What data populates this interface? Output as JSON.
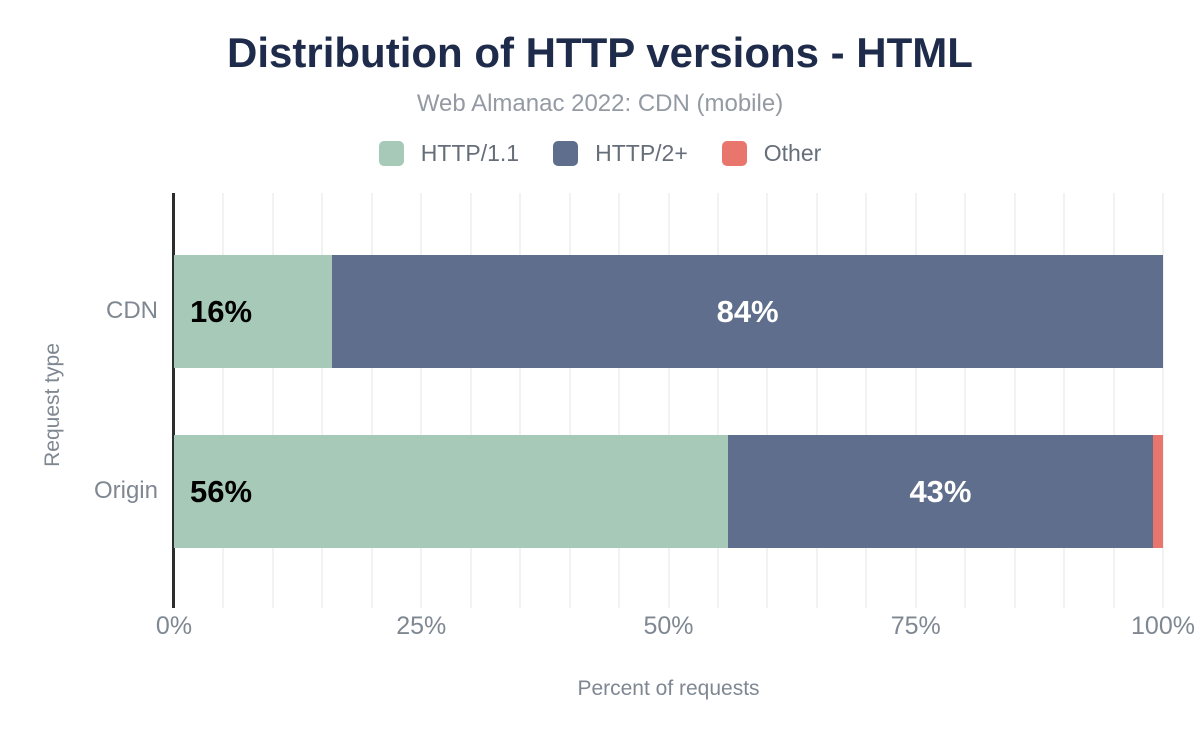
{
  "chart_data": {
    "type": "bar",
    "orientation": "horizontal",
    "stacked": true,
    "title": "Distribution of HTTP versions - HTML",
    "subtitle": "Web Almanac 2022: CDN (mobile)",
    "xlabel": "Percent of requests",
    "ylabel": "Request type",
    "categories": [
      "CDN",
      "Origin"
    ],
    "series": [
      {
        "name": "HTTP/1.1",
        "color": "#a7c9b8",
        "label_color": "#000000",
        "values": [
          16,
          56
        ]
      },
      {
        "name": "HTTP/2+",
        "color": "#5f6e8c",
        "label_color": "#ffffff",
        "values": [
          84,
          43
        ]
      },
      {
        "name": "Other",
        "color": "#e8766d",
        "label_color": "#ffffff",
        "values": [
          0,
          1
        ]
      }
    ],
    "bar_labels": [
      [
        "16%",
        "84%",
        ""
      ],
      [
        "56%",
        "43%",
        ""
      ]
    ],
    "xlim": [
      0,
      100
    ],
    "x_ticks": [
      {
        "value": 0,
        "label": "0%"
      },
      {
        "value": 25,
        "label": "25%"
      },
      {
        "value": 50,
        "label": "50%"
      },
      {
        "value": 75,
        "label": "75%"
      },
      {
        "value": 100,
        "label": "100%"
      }
    ],
    "grid": {
      "show": true,
      "interval": 5,
      "color": "#f1f2f2"
    },
    "legend_position": "top",
    "colors": {
      "title": "#1e2b4a",
      "subtitle": "#949aa3",
      "legend_text": "#666e79",
      "axis_text": "#7f8892",
      "axis_line": "#2b2c2e",
      "background": "#ffffff"
    }
  }
}
